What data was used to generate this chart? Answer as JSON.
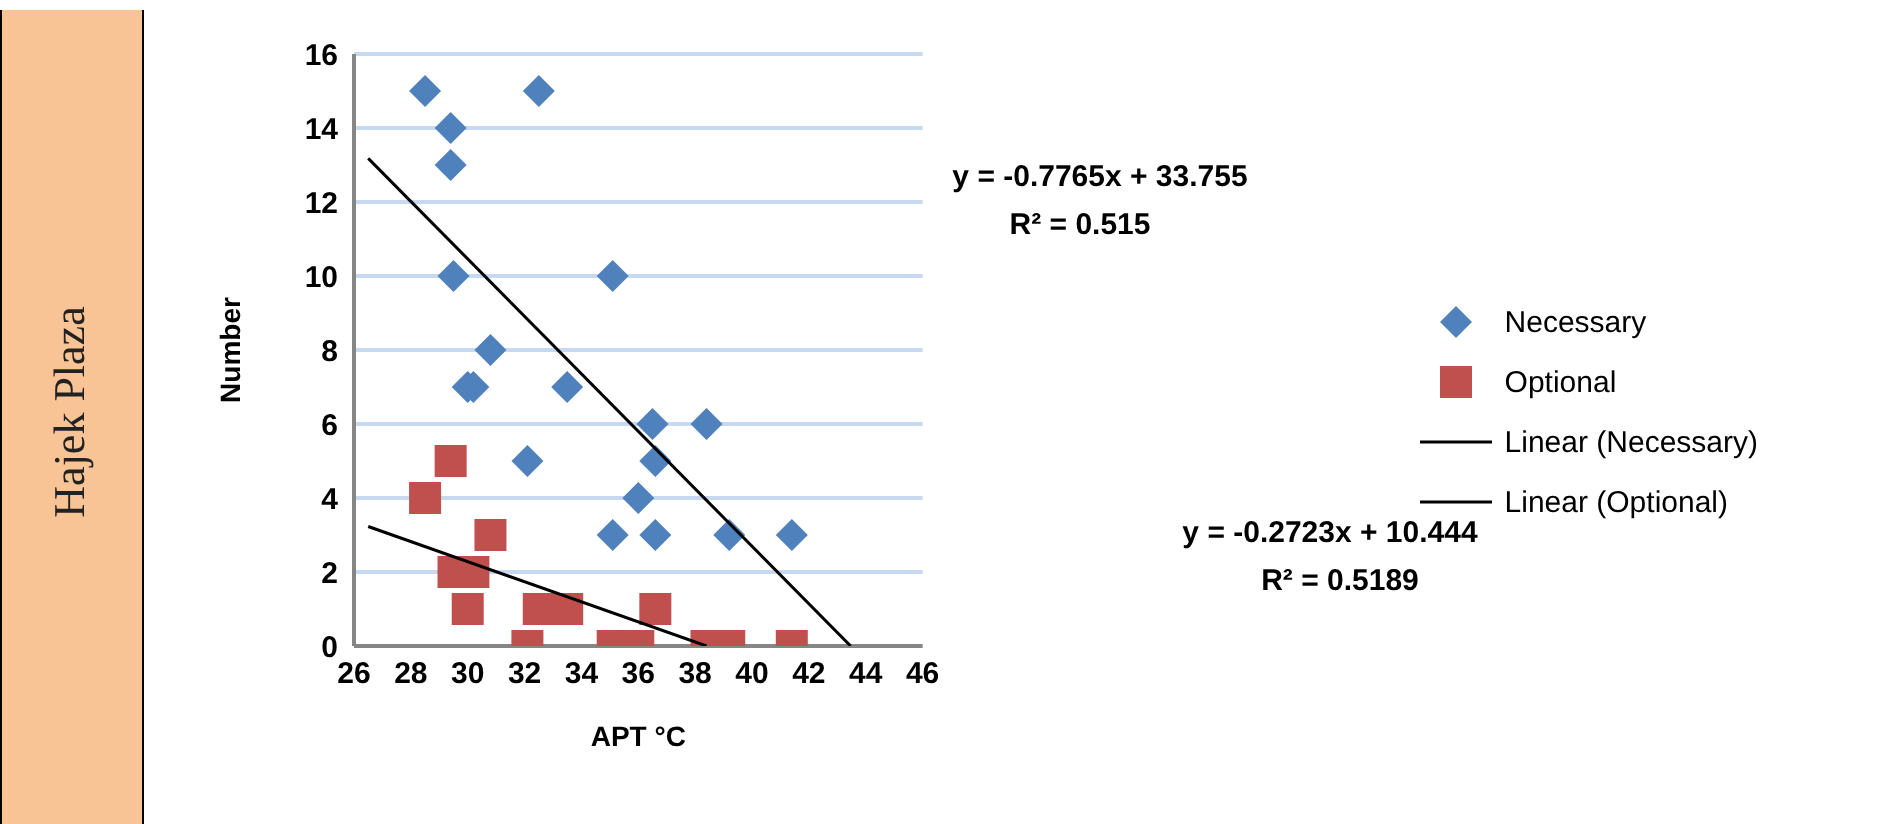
{
  "chart_data": {
    "type": "scatter",
    "xlabel": "APT °C",
    "ylabel": "Number",
    "xlim": [
      26,
      46
    ],
    "xticks": [
      26,
      28,
      30,
      32,
      34,
      36,
      38,
      40,
      42,
      44,
      46
    ],
    "ylim": [
      0,
      16
    ],
    "yticks": [
      0,
      2,
      4,
      6,
      8,
      10,
      12,
      14,
      16
    ],
    "grid": "y",
    "legend": "right",
    "series": [
      {
        "name": "Necessary",
        "color": "#4f81bd",
        "marker": "diamond",
        "x": [
          28.5,
          32.5,
          29.4,
          29.4,
          29.5,
          35.1,
          30.8,
          30.0,
          30.2,
          33.5,
          36.5,
          38.4,
          36.6,
          32.1,
          36.0,
          35.1,
          36.6,
          39.2,
          41.4
        ],
        "values": [
          15,
          15,
          14,
          13,
          10,
          10,
          8,
          7,
          7,
          7,
          6,
          6,
          5,
          5,
          4,
          3,
          3,
          3,
          3
        ]
      },
      {
        "name": "Optional",
        "color": "#c0504d",
        "marker": "square",
        "x": [
          29.4,
          28.5,
          30.8,
          29.5,
          30.2,
          30.0,
          32.5,
          33.5,
          36.6,
          32.1,
          35.1,
          36.0,
          38.4,
          39.2,
          41.4
        ],
        "values": [
          5,
          4,
          3,
          2,
          2,
          1,
          1,
          1,
          1,
          0,
          0,
          0,
          0,
          0,
          0
        ]
      },
      {
        "name": "Linear (Necessary)",
        "type": "line",
        "color": "#000000",
        "marker": "none",
        "x": [
          26.5,
          43.47
        ],
        "values": [
          13.18,
          0
        ]
      },
      {
        "name": "Linear (Optional)",
        "type": "line",
        "color": "#000000",
        "marker": "none",
        "x": [
          26.5,
          38.4
        ],
        "values": [
          3.23,
          0
        ]
      }
    ],
    "annotations": [
      "Hajek Plaza",
      "y = -0.7765x + 33.755",
      "R² = 0.515",
      "y = -0.2723x + 10.444",
      "R² = 0.5189"
    ]
  }
}
